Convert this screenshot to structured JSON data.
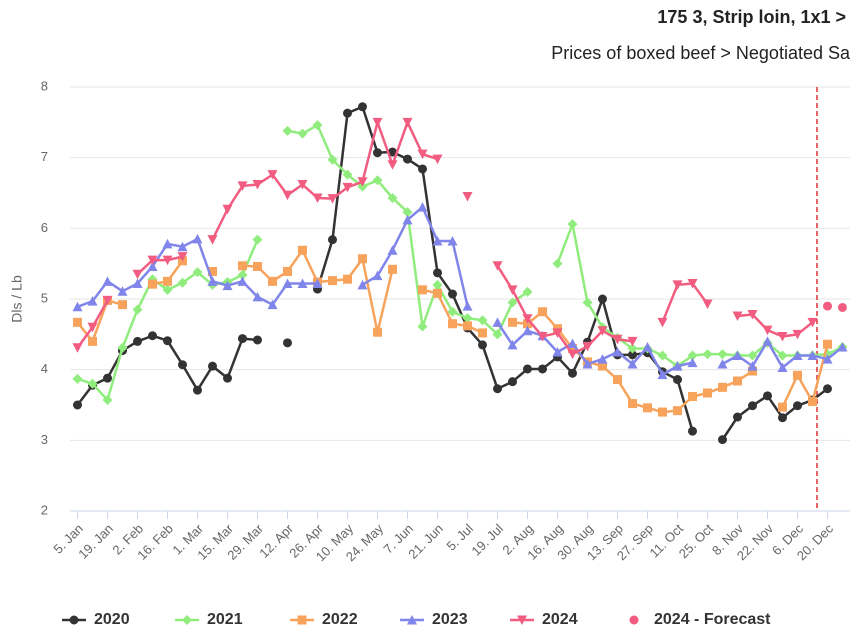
{
  "chart_data": {
    "type": "line",
    "title": "175 3, Strip loin, 1x1 >",
    "subtitle": "Prices of boxed beef > Negotiated Sa",
    "y_axis_label": "Dls / Lb",
    "categories": [
      "5. Jan",
      null,
      "19. Jan",
      null,
      "2. Feb",
      null,
      "16. Feb",
      null,
      "1. Mar",
      null,
      "15. Mar",
      null,
      "29. Mar",
      null,
      "12. Apr",
      null,
      "26. Apr",
      null,
      "10. May",
      null,
      "24. May",
      null,
      "7. Jun",
      null,
      "21. Jun",
      null,
      "5. Jul",
      null,
      "19. Jul",
      null,
      "2. Aug",
      null,
      "16. Aug",
      null,
      "30. Aug",
      null,
      "13. Sep",
      null,
      "27. Sep",
      null,
      "11. Oct",
      null,
      "25. Oct",
      null,
      "8. Nov",
      null,
      "22. Nov",
      null,
      "6. Dec",
      null,
      "20. Dec",
      null
    ],
    "ylim": [
      2,
      8
    ],
    "yticks": [
      2,
      3,
      4,
      5,
      6,
      7,
      8
    ],
    "grid": true,
    "forecast_line": {
      "x": 49.3,
      "color": "#e03030"
    },
    "series": [
      {
        "name": "2020",
        "color": "#333333",
        "marker": "circle",
        "line": true,
        "values": [
          3.5,
          3.78,
          3.88,
          4.27,
          4.4,
          4.48,
          4.41,
          4.07,
          3.71,
          4.05,
          3.88,
          4.44,
          4.42,
          null,
          4.38,
          null,
          5.14,
          5.84,
          7.63,
          7.72,
          7.07,
          7.08,
          6.98,
          6.84,
          5.37,
          5.07,
          4.59,
          4.35,
          3.73,
          3.83,
          4.01,
          4.01,
          4.18,
          3.95,
          4.39,
          5.0,
          4.21,
          4.21,
          4.24,
          3.97,
          3.86,
          3.13,
          null,
          3.01,
          3.33,
          3.49,
          3.63,
          3.32,
          3.49,
          3.57,
          3.73,
          null
        ]
      },
      {
        "name": "2021",
        "color": "#90ed7d",
        "marker": "diamond",
        "line": true,
        "values": [
          3.87,
          3.8,
          3.57,
          4.31,
          4.85,
          5.28,
          5.13,
          5.23,
          5.38,
          5.2,
          5.24,
          5.34,
          5.84,
          null,
          7.38,
          7.34,
          7.46,
          6.97,
          6.76,
          6.59,
          6.68,
          6.43,
          6.23,
          4.61,
          5.2,
          4.82,
          4.73,
          4.7,
          4.5,
          4.95,
          5.1,
          null,
          5.5,
          6.06,
          4.95,
          4.6,
          4.45,
          4.3,
          4.3,
          4.2,
          4.05,
          4.2,
          4.22,
          4.22,
          4.2,
          4.2,
          4.38,
          4.2,
          4.2,
          4.2,
          4.22,
          4.32
        ]
      },
      {
        "name": "2022",
        "color": "#f7a35c",
        "marker": "square",
        "line": true,
        "values": [
          4.67,
          4.4,
          4.98,
          4.92,
          null,
          5.21,
          5.25,
          5.54,
          null,
          5.39,
          null,
          5.47,
          5.46,
          5.25,
          5.39,
          5.69,
          5.24,
          5.26,
          5.28,
          5.57,
          4.53,
          5.42,
          null,
          5.13,
          5.08,
          4.65,
          4.62,
          4.52,
          null,
          4.67,
          4.65,
          4.82,
          4.58,
          4.3,
          4.11,
          4.05,
          3.86,
          3.52,
          3.46,
          3.4,
          3.42,
          3.62,
          3.67,
          3.75,
          3.84,
          3.98,
          null,
          3.47,
          3.92,
          3.55,
          4.36,
          null
        ]
      },
      {
        "name": "2023",
        "color": "#8085e9",
        "marker": "triangle",
        "line": true,
        "values": [
          4.89,
          4.97,
          5.25,
          5.11,
          5.22,
          5.46,
          5.78,
          5.74,
          5.85,
          5.25,
          5.19,
          5.25,
          5.03,
          4.92,
          5.22,
          5.22,
          5.22,
          null,
          null,
          5.2,
          5.33,
          5.69,
          6.12,
          6.3,
          5.82,
          5.82,
          4.9,
          null,
          4.67,
          4.35,
          4.55,
          4.48,
          4.25,
          4.37,
          4.08,
          4.15,
          4.25,
          4.08,
          4.32,
          3.93,
          4.05,
          4.1,
          null,
          4.08,
          4.2,
          4.05,
          4.4,
          4.03,
          4.2,
          4.2,
          4.15,
          4.32
        ]
      },
      {
        "name": "2024",
        "color": "#f15c80",
        "marker": "triangle-down",
        "line": true,
        "values": [
          4.31,
          4.6,
          4.98,
          null,
          5.35,
          5.55,
          5.55,
          5.6,
          null,
          5.84,
          6.27,
          6.6,
          6.62,
          6.76,
          6.47,
          6.62,
          6.43,
          6.42,
          6.58,
          6.66,
          7.5,
          6.9,
          7.5,
          7.05,
          6.98,
          null,
          6.45,
          null,
          5.47,
          5.13,
          4.72,
          4.47,
          4.52,
          4.22,
          4.33,
          4.55,
          4.43,
          4.4,
          null,
          4.67,
          5.2,
          5.22,
          4.93,
          null,
          4.76,
          4.78,
          4.56,
          4.47,
          4.5,
          4.67,
          null,
          null
        ]
      },
      {
        "name": "2024 - Forecast",
        "color": "#f15c80",
        "marker": "circle",
        "line": false,
        "values": [
          null,
          null,
          null,
          null,
          null,
          null,
          null,
          null,
          null,
          null,
          null,
          null,
          null,
          null,
          null,
          null,
          null,
          null,
          null,
          null,
          null,
          null,
          null,
          null,
          null,
          null,
          null,
          null,
          null,
          null,
          null,
          null,
          null,
          null,
          null,
          null,
          null,
          null,
          null,
          null,
          null,
          null,
          null,
          null,
          null,
          null,
          null,
          null,
          null,
          null,
          4.9,
          4.88
        ]
      }
    ]
  }
}
